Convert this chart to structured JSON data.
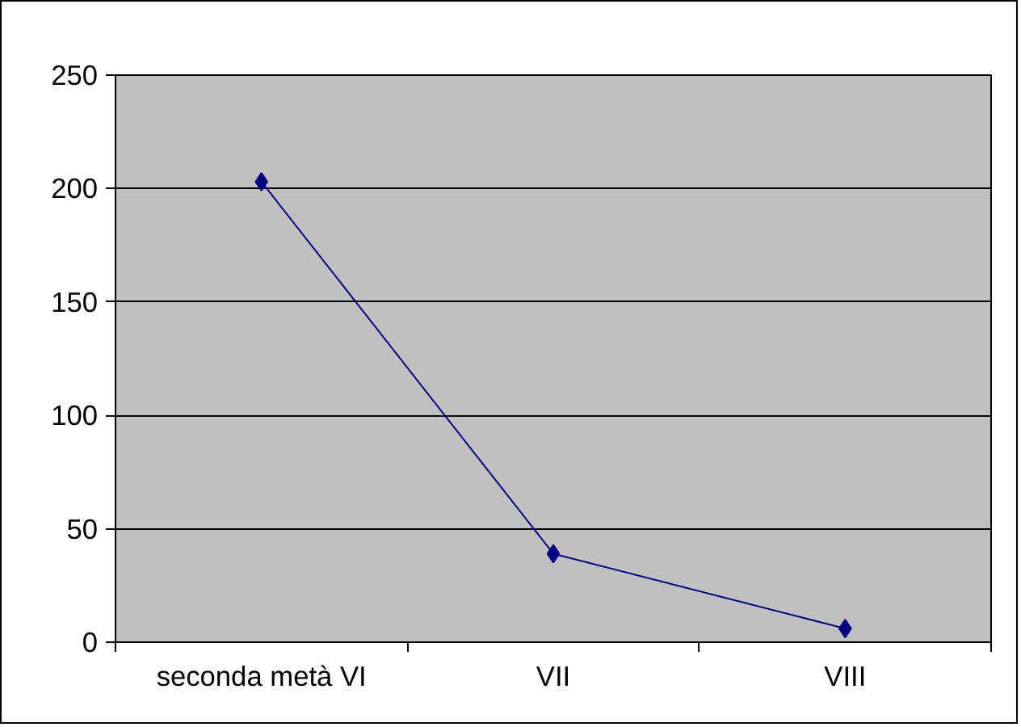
{
  "chart_data": {
    "type": "line",
    "categories": [
      "seconda metà VI",
      "VII",
      "VIII"
    ],
    "series": [
      {
        "color": "#000080",
        "values": [
          203,
          39,
          6
        ]
      }
    ],
    "ylim": [
      0,
      250
    ],
    "yticks": [
      0,
      50,
      100,
      150,
      200,
      250
    ],
    "grid": "y",
    "marker": "diamond",
    "line_style": "solid"
  }
}
